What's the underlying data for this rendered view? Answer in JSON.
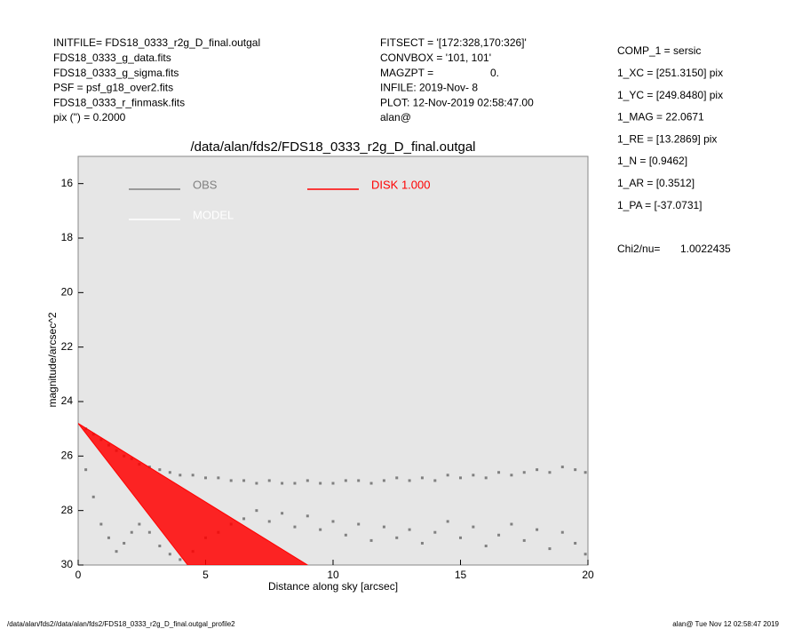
{
  "header": {
    "left": [
      "INITFILE= FDS18_0333_r2g_D_final.outgal",
      "FDS18_0333_g_data.fits",
      "FDS18_0333_g_sigma.fits",
      "PSF     = psf_g18_over2.fits",
      "FDS18_0333_r_finmask.fits",
      "pix (\") =  0.2000"
    ],
    "middle": [
      "FITSECT = '[172:328,170:326]'",
      "CONVBOX = '101, 101'",
      "MAGZPT =",
      "INFILE: 2019-Nov- 8",
      "PLOT: 12-Nov-2019 02:58:47.00",
      "alan@"
    ],
    "magzpt_value": "0.",
    "right": [
      "COMP_1  = sersic",
      "1_XC    = [251.3150] pix",
      "1_YC    = [249.8480] pix",
      "1_MAG   = 22.0671",
      "1_RE    = [13.2869] pix",
      "1_N     = [0.9462]",
      "1_AR    = [0.3512]",
      "1_PA    = [-37.0731]"
    ],
    "chi2_label": "Chi2/nu=",
    "chi2_value": "1.0022435"
  },
  "footer": {
    "left": "/data/alan/fds2//data/alan/fds2/FDS18_0333_r2g_D_final.outgal_profile2",
    "right": "alan@  Tue Nov 12 02:58:47 2019"
  },
  "chart_data": {
    "type": "scatter",
    "title": "/data/alan/fds2/FDS18_0333_r2g_D_final.outgal",
    "x_label": "Distance along sky [arcsec]",
    "y_label": "magnitude/arcsec^2",
    "xlim": [
      0,
      20
    ],
    "xticks": [
      0,
      5,
      10,
      15,
      20
    ],
    "ylim": [
      15,
      30
    ],
    "yticks": [
      16,
      18,
      20,
      22,
      24,
      26,
      28,
      30
    ],
    "invert_y": true,
    "series": [
      {
        "name": "OBS",
        "color": "#808080",
        "x": [
          0.3,
          0.6,
          0.9,
          1.2,
          1.5,
          1.8,
          2.1,
          2.4,
          2.8,
          3.2,
          3.6,
          4.0,
          4.5,
          5.0,
          5.5,
          6.0,
          6.5,
          7.0,
          7.5,
          8.0,
          8.5,
          9.0,
          9.5,
          10.0,
          10.5,
          11.0,
          11.5,
          12.0,
          12.5,
          13.0,
          13.5,
          14.0,
          14.5,
          15.0,
          15.5,
          16.0,
          16.5,
          17.0,
          17.5,
          18.0,
          18.5,
          19.0,
          19.5,
          19.9,
          0.3,
          0.6,
          0.9,
          1.2,
          1.5,
          1.8,
          2.1,
          2.4,
          2.8,
          3.2,
          3.6,
          4.0,
          4.5,
          5.0,
          5.5,
          6.0,
          6.5,
          7.0,
          7.5,
          8.0,
          8.5,
          9.0,
          9.5,
          10.0,
          10.5,
          11.0,
          11.5,
          12.0,
          12.5,
          13.0,
          13.5,
          14.0,
          14.5,
          15.0,
          15.5,
          16.0,
          16.5,
          17.0,
          17.5,
          18.0,
          18.5,
          19.0,
          19.5,
          19.9
        ],
        "values": [
          25.0,
          25.2,
          25.4,
          25.6,
          25.8,
          26.0,
          26.1,
          26.3,
          26.4,
          26.5,
          26.6,
          26.7,
          26.7,
          26.8,
          26.8,
          26.9,
          26.9,
          27.0,
          26.9,
          27.0,
          27.0,
          26.9,
          27.0,
          27.0,
          26.9,
          26.9,
          27.0,
          26.9,
          26.8,
          26.9,
          26.8,
          26.9,
          26.7,
          26.8,
          26.7,
          26.8,
          26.6,
          26.7,
          26.6,
          26.5,
          26.6,
          26.4,
          26.5,
          26.6,
          26.5,
          27.5,
          28.5,
          29.0,
          29.5,
          29.2,
          28.8,
          28.5,
          28.8,
          29.3,
          29.6,
          29.8,
          29.5,
          29.0,
          28.8,
          28.5,
          28.3,
          28.0,
          28.4,
          28.1,
          28.6,
          28.2,
          28.7,
          28.4,
          28.9,
          28.5,
          29.1,
          28.6,
          29.0,
          28.7,
          29.2,
          28.8,
          28.4,
          29.0,
          28.6,
          29.3,
          28.9,
          28.5,
          29.1,
          28.7,
          29.4,
          28.8,
          29.2,
          29.6
        ]
      },
      {
        "name": "DISK  1.000",
        "color": "#ff0000",
        "type": "band",
        "x": [
          0,
          9.0,
          4.3
        ],
        "values": [
          24.8,
          30,
          30
        ]
      },
      {
        "name": "MODEL",
        "color": "#ffffff"
      }
    ]
  }
}
